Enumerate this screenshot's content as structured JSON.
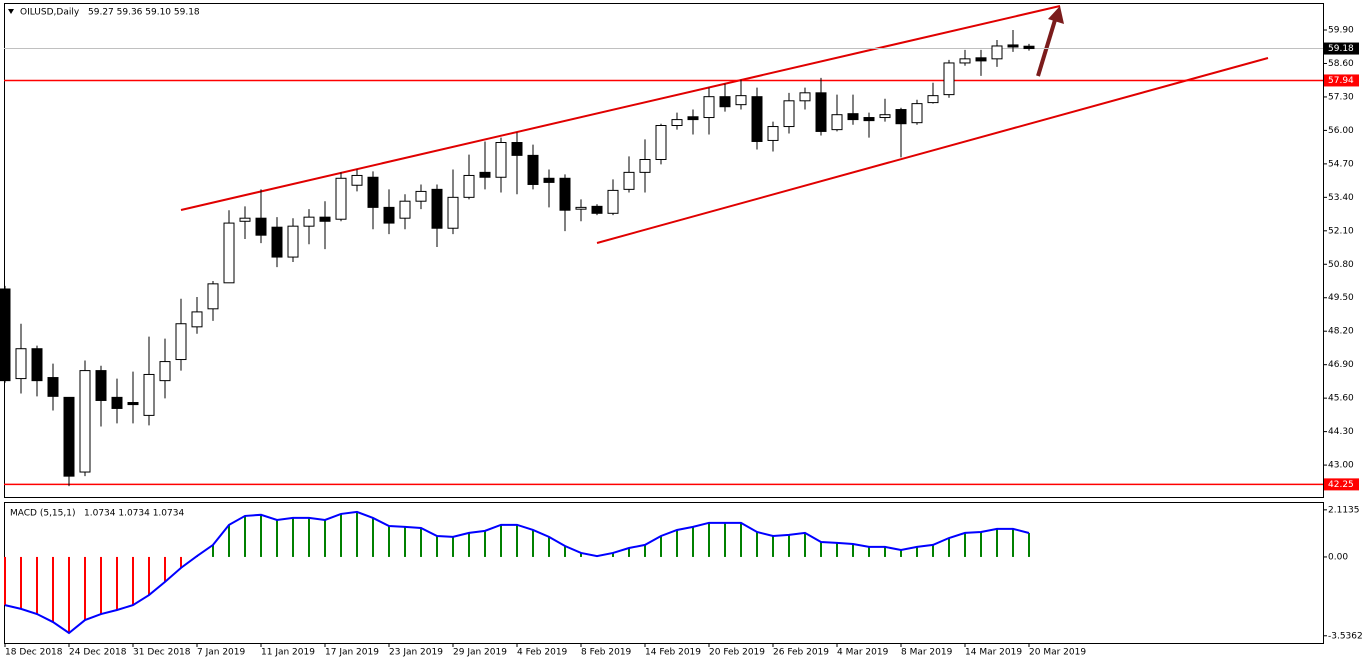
{
  "chart_data": [
    {
      "type": "candlestick",
      "title": "OILUSD,Daily",
      "subtitle": "59.27 59.36 59.10 59.18",
      "categories": [
        "18 Dec 2018",
        null,
        null,
        null,
        "24 Dec 2018",
        null,
        null,
        null,
        "31 Dec 2018",
        null,
        null,
        null,
        "7 Jan 2019",
        null,
        null,
        null,
        "11 Jan 2019",
        null,
        null,
        null,
        "17 Jan 2019",
        null,
        null,
        null,
        "23 Jan 2019",
        null,
        null,
        null,
        "29 Jan 2019",
        null,
        null,
        null,
        "4 Feb 2019",
        null,
        null,
        null,
        "8 Feb 2019",
        null,
        null,
        null,
        "14 Feb 2019",
        null,
        null,
        null,
        "20 Feb 2019",
        null,
        null,
        null,
        "26 Feb 2019",
        null,
        null,
        null,
        "4 Mar 2019",
        null,
        null,
        null,
        "8 Mar 2019",
        null,
        null,
        null,
        "14 Mar 2019",
        null,
        null,
        null,
        "20 Mar 2019"
      ],
      "open": [
        49.84,
        46.36,
        47.52,
        46.4,
        45.63,
        42.73,
        46.67,
        45.63,
        45.43,
        44.93,
        46.28,
        47.1,
        48.37,
        49.07,
        50.08,
        52.47,
        52.59,
        52.24,
        51.08,
        52.28,
        52.63,
        52.55,
        53.87,
        54.18,
        53.01,
        52.59,
        53.25,
        53.71,
        52.2,
        53.4,
        54.37,
        54.18,
        55.53,
        55.03,
        54.14,
        54.14,
        52.94,
        53.05,
        52.78,
        53.71,
        54.37,
        54.87,
        56.19,
        56.53,
        56.5,
        57.31,
        57.0,
        57.31,
        55.61,
        56.15,
        57.15,
        57.46,
        56.03,
        56.65,
        56.5,
        56.5,
        56.81,
        56.3,
        57.08,
        57.39,
        58.62,
        58.82,
        58.78,
        59.32,
        59.27
      ],
      "high": [
        49.96,
        48.49,
        47.64,
        46.94,
        45.63,
        47.06,
        46.86,
        46.36,
        46.63,
        47.99,
        47.91,
        49.46,
        49.53,
        50.15,
        52.9,
        53.05,
        53.71,
        52.63,
        52.59,
        52.94,
        53.25,
        54.37,
        54.48,
        54.41,
        53.71,
        53.52,
        53.9,
        53.9,
        54.48,
        55.06,
        55.57,
        55.72,
        55.92,
        55.45,
        54.48,
        54.29,
        53.32,
        53.13,
        54.1,
        54.99,
        55.65,
        56.26,
        56.69,
        56.81,
        57.66,
        57.81,
        57.97,
        57.66,
        56.34,
        57.46,
        57.66,
        58.04,
        57.39,
        57.39,
        56.69,
        57.23,
        56.88,
        57.19,
        57.85,
        58.74,
        59.13,
        59.13,
        59.51,
        59.9,
        59.36
      ],
      "low": [
        46.2,
        45.78,
        45.67,
        45.12,
        42.18,
        42.57,
        44.5,
        44.62,
        44.62,
        44.54,
        45.59,
        46.67,
        48.1,
        48.6,
        50.08,
        51.78,
        51.62,
        50.69,
        50.89,
        51.58,
        51.39,
        52.47,
        53.63,
        52.16,
        51.97,
        52.16,
        52.94,
        51.47,
        51.97,
        53.32,
        53.71,
        53.59,
        53.52,
        53.71,
        53.01,
        52.09,
        52.47,
        52.71,
        52.71,
        53.59,
        53.59,
        54.68,
        56.03,
        55.84,
        55.84,
        56.73,
        56.81,
        55.26,
        55.18,
        55.88,
        56.81,
        55.8,
        55.96,
        56.22,
        55.72,
        56.34,
        54.95,
        56.22,
        57.04,
        57.27,
        58.51,
        58.12,
        58.47,
        59.05,
        59.1
      ],
      "close": [
        46.28,
        47.52,
        46.28,
        45.67,
        42.57,
        46.67,
        45.51,
        45.2,
        45.35,
        46.52,
        47.02,
        48.49,
        48.95,
        50.04,
        52.4,
        52.59,
        51.93,
        51.08,
        52.28,
        52.63,
        52.47,
        54.14,
        54.25,
        53.01,
        52.4,
        53.25,
        53.63,
        52.2,
        53.4,
        54.25,
        54.18,
        55.53,
        55.03,
        53.9,
        53.98,
        52.9,
        53.01,
        52.78,
        53.67,
        54.37,
        54.87,
        56.19,
        56.42,
        56.42,
        57.31,
        56.92,
        57.35,
        55.57,
        56.15,
        57.15,
        57.46,
        55.96,
        56.61,
        56.42,
        56.38,
        56.61,
        56.26,
        57.04,
        57.35,
        58.62,
        58.78,
        58.7,
        59.28,
        59.24,
        59.18
      ],
      "ylim": [
        41.76,
        60.91
      ],
      "yticks": [
        {
          "value": 43,
          "label": "43.00"
        },
        {
          "value": 44.3,
          "label": "44.30"
        },
        {
          "value": 45.6,
          "label": "45.60"
        },
        {
          "value": 46.9,
          "label": "46.90"
        },
        {
          "value": 48.2,
          "label": "48.20"
        },
        {
          "value": 49.5,
          "label": "49.50"
        },
        {
          "value": 50.8,
          "label": "50.80"
        },
        {
          "value": 52.1,
          "label": "52.10"
        },
        {
          "value": 53.4,
          "label": "53.40"
        },
        {
          "value": 54.7,
          "label": "54.70"
        },
        {
          "value": 56,
          "label": "56.00"
        },
        {
          "value": 57.3,
          "label": "57.30"
        },
        {
          "value": 58.6,
          "label": "58.60"
        },
        {
          "value": 59.9,
          "label": "59.90"
        }
      ],
      "up_color": "#ffffff",
      "down_color": "#000000",
      "hlines": [
        {
          "value": 57.94,
          "label": "57.94",
          "color": "#ff0000"
        },
        {
          "value": 42.25,
          "label": "42.25",
          "color": "#ff0000"
        }
      ],
      "price_line": {
        "value": 59.18,
        "label": "59.18",
        "color": "#000000"
      }
    },
    {
      "type": "macd",
      "title": "MACD (5,15,1)",
      "subtitle": "1.0734 1.0734 1.0734",
      "values": [
        -2.16,
        -2.33,
        -2.56,
        -2.92,
        -3.41,
        -2.83,
        -2.56,
        -2.38,
        -2.16,
        -1.71,
        -1.12,
        -0.49,
        0.04,
        0.54,
        1.44,
        1.84,
        1.89,
        1.66,
        1.75,
        1.75,
        1.66,
        1.93,
        2.02,
        1.75,
        1.39,
        1.35,
        1.3,
        0.94,
        0.9,
        1.08,
        1.17,
        1.44,
        1.44,
        1.21,
        0.9,
        0.49,
        0.18,
        0.04,
        0.18,
        0.4,
        0.54,
        0.94,
        1.21,
        1.35,
        1.53,
        1.53,
        1.53,
        1.12,
        0.94,
        0.99,
        1.08,
        0.67,
        0.63,
        0.58,
        0.45,
        0.45,
        0.31,
        0.45,
        0.54,
        0.85,
        1.08,
        1.12,
        1.26,
        1.26,
        1.0734
      ],
      "ylim": [
        -3.86,
        2.42
      ],
      "yticks": [
        -3.5362,
        {
          "value": 0,
          "label": "0.00"
        },
        2.1135
      ],
      "pos_color": "#008000",
      "neg_color": "#ff0000",
      "line_color": "#0000ff"
    }
  ]
}
